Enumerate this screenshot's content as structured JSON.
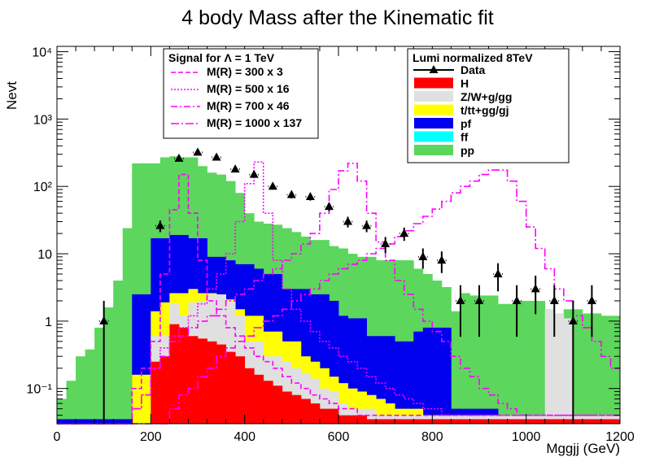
{
  "chart_data": {
    "type": "histogram",
    "title": "4 body Mass after the Kinematic fit",
    "xlabel": "Mggjj (GeV)",
    "ylabel": "Nevt",
    "xlim": [
      0,
      1200
    ],
    "ylim": [
      0.03,
      12000
    ],
    "log_y": true,
    "bin_width": 20,
    "x_ticks": [
      0,
      200,
      400,
      600,
      800,
      1000,
      1200
    ],
    "x_tick_labels": [
      "0",
      "200",
      "400",
      "600",
      "800",
      "1000",
      "1200"
    ],
    "y_ticks": [
      0.1,
      1,
      10,
      100,
      1000,
      10000
    ],
    "y_tick_labels": [
      "10⁻¹",
      "1",
      "10",
      "10²",
      "10³",
      "10⁴"
    ],
    "colors": {
      "pp": "#5cd65c",
      "ff": "#00ffff",
      "pf": "#0000ee",
      "ttgj": "#ffff00",
      "zw": "#e0e0e0",
      "h": "#ff0000",
      "signal": "#ff00ff",
      "data": "#000000"
    },
    "background_stack": [
      {
        "name": "pp",
        "bins_from": 0,
        "values": [
          0.07,
          0.13,
          0.3,
          0.38,
          0.8,
          1.6,
          4.0,
          24,
          220,
          220,
          220,
          270,
          280,
          270,
          270,
          200,
          160,
          150,
          120,
          80,
          40,
          30,
          28,
          27,
          24,
          21,
          18,
          16,
          16,
          13,
          12,
          10,
          9,
          9,
          8,
          8,
          8,
          8,
          6,
          5,
          4,
          3.2,
          1.4,
          2.6,
          2.4,
          2.4,
          2.4,
          1.8,
          1.8,
          2.0,
          2.0,
          2.0,
          1.5,
          1.3,
          1.5,
          1.5,
          1.3,
          1.3,
          1.2,
          1.2
        ]
      },
      {
        "name": "pf",
        "bins_from": 0,
        "values": [
          0.035,
          0.035,
          0.035,
          0.035,
          0.035,
          0.035,
          0.035,
          0.035,
          2.5,
          2.5,
          17,
          17,
          19,
          19,
          17,
          17,
          9,
          9,
          8,
          7,
          7,
          6,
          5,
          5,
          3,
          3,
          3,
          2.5,
          2.5,
          2,
          1.2,
          1.1,
          1.1,
          0.6,
          0.6,
          0.6,
          0.5,
          0.5,
          0.7,
          0.8,
          0.8,
          0.8,
          0.05,
          0.05,
          0.05,
          0.05,
          0.05,
          0.04,
          0.04,
          0.04,
          0.04,
          0.04,
          0.035,
          0.035,
          0.035,
          0.035,
          0.035,
          0.035,
          0.035,
          0.035
        ]
      },
      {
        "name": "t/tt+gg/gj",
        "bins_from": 0,
        "values": [
          0.03,
          0.03,
          0.03,
          0.03,
          0.03,
          0.03,
          0.03,
          0.03,
          0.16,
          0.16,
          1.4,
          1.9,
          2.6,
          2.6,
          3.0,
          2.6,
          2.6,
          2.4,
          2.1,
          1.5,
          1.2,
          1.2,
          0.7,
          0.7,
          0.5,
          0.5,
          0.3,
          0.25,
          0.2,
          0.15,
          0.12,
          0.1,
          0.09,
          0.08,
          0.07,
          0.06,
          0.05,
          0.05,
          0.05,
          0.04,
          0.04,
          0.04,
          0.04,
          0.04,
          0.04,
          0.04,
          0.04,
          0.04,
          0.04,
          0.04,
          0.04,
          0.04,
          0.04,
          0.04,
          0.04,
          0.04,
          0.04,
          0.04,
          0.04,
          0.04
        ]
      },
      {
        "name": "Z/W+g/gg",
        "bins_from": 0,
        "values": [
          0.03,
          0.03,
          0.03,
          0.03,
          0.03,
          0.03,
          0.03,
          0.03,
          0.03,
          0.03,
          0.6,
          0.6,
          1.8,
          1.2,
          1.9,
          2.0,
          2.5,
          2.5,
          2.0,
          1.2,
          0.5,
          0.5,
          0.3,
          0.3,
          0.25,
          0.2,
          0.17,
          0.14,
          0.1,
          0.09,
          0.06,
          0.05,
          0.05,
          0.05,
          0.04,
          0.04,
          0.04,
          0.04,
          0.04,
          0.04,
          0.04,
          0.04,
          0.04,
          0.04,
          0.04,
          0.04,
          0.04,
          0.04,
          0.04,
          0.04,
          0.04,
          0.04,
          1.5,
          1.3,
          1.1,
          0.04,
          0.04,
          0.04,
          0.04,
          0.04
        ]
      },
      {
        "name": "H",
        "bins_from": 0,
        "values": [
          0.03,
          0.03,
          0.03,
          0.03,
          0.03,
          0.03,
          0.03,
          0.03,
          0.03,
          0.03,
          0.25,
          0.3,
          0.9,
          0.8,
          0.6,
          0.55,
          0.5,
          0.45,
          0.35,
          0.3,
          0.2,
          0.16,
          0.13,
          0.11,
          0.09,
          0.08,
          0.07,
          0.06,
          0.05,
          0.05,
          0.04,
          0.04,
          0.04,
          0.035,
          0.035,
          0.035,
          0.035,
          0.035,
          0.035,
          0.035,
          0.035,
          0.035,
          0.035,
          0.035,
          0.035,
          0.035,
          0.035,
          0.035,
          0.035,
          0.035,
          0.035,
          0.035,
          0.035,
          0.035,
          0.035,
          0.035,
          0.035,
          0.035,
          0.035,
          0.035
        ]
      }
    ],
    "signals": [
      {
        "name": "M(R) = 300 x 3",
        "dash": "6,3",
        "values": [
          0.03,
          0.03,
          0.03,
          0.03,
          0.03,
          0.03,
          0.03,
          0.03,
          0.1,
          0.2,
          0.5,
          5.0,
          45,
          150,
          40,
          8,
          2,
          1.2,
          0.8,
          0.6,
          0.4,
          0.3,
          0.25,
          0.2,
          0.15,
          0.12,
          0.1,
          0.08,
          0.07,
          0.06,
          0.05,
          0.05,
          0.04,
          0.04,
          0.04,
          0.04,
          0.04,
          0.04,
          0.04,
          0.04,
          0.04,
          0.04,
          0.04,
          0.04,
          0.04,
          0.04,
          0.04,
          0.04,
          0.04,
          0.04,
          0.04,
          0.04,
          0.04,
          0.04,
          0.04,
          0.04,
          0.04,
          0.04,
          0.04,
          0.04
        ]
      },
      {
        "name": "M(R) = 500 x 16",
        "dash": "2,2",
        "values": [
          0.03,
          0.03,
          0.03,
          0.03,
          0.03,
          0.03,
          0.03,
          0.03,
          0.05,
          0.08,
          0.2,
          0.4,
          0.6,
          0.8,
          1.2,
          1.8,
          3,
          5,
          10,
          30,
          110,
          230,
          40,
          8,
          3,
          1.5,
          1,
          0.7,
          0.5,
          0.4,
          0.3,
          0.25,
          0.2,
          0.15,
          0.12,
          0.1,
          0.08,
          0.07,
          0.06,
          0.05,
          0.05,
          0.04,
          0.04,
          0.04,
          0.04,
          0.04,
          0.04,
          0.04,
          0.04,
          0.04,
          0.04,
          0.04,
          0.04,
          0.04,
          0.04,
          0.04,
          0.04,
          0.04,
          0.04,
          0.04
        ]
      },
      {
        "name": "M(R) = 700 x 46",
        "dash": "8,3,2,3",
        "values": [
          0.03,
          0.03,
          0.03,
          0.03,
          0.03,
          0.03,
          0.03,
          0.03,
          0.05,
          0.08,
          0.2,
          0.3,
          0.5,
          0.6,
          0.8,
          1.0,
          1.2,
          1.5,
          2.0,
          2.5,
          3,
          4,
          5,
          6,
          8,
          10,
          14,
          20,
          40,
          90,
          170,
          220,
          120,
          40,
          15,
          8,
          4,
          2.5,
          1.5,
          1,
          0.7,
          0.5,
          0.3,
          0.2,
          0.15,
          0.1,
          0.08,
          0.06,
          0.05,
          0.04,
          0.04,
          0.04,
          0.04,
          0.04,
          0.04,
          0.04,
          0.04,
          0.04,
          0.04,
          0.04
        ]
      },
      {
        "name": "M(R) = 1000 x 137",
        "dash": "10,3,2,3",
        "values": [
          0.03,
          0.03,
          0.03,
          0.03,
          0.03,
          0.03,
          0.03,
          0.03,
          0.03,
          0.03,
          0.03,
          0.03,
          0.05,
          0.08,
          0.1,
          0.15,
          0.2,
          0.3,
          0.4,
          0.5,
          0.6,
          0.8,
          1.0,
          1.2,
          1.5,
          2.0,
          2.5,
          3,
          4,
          5,
          6,
          7,
          8,
          10,
          12,
          14,
          18,
          22,
          28,
          36,
          46,
          60,
          80,
          100,
          120,
          150,
          175,
          175,
          120,
          60,
          25,
          12,
          6,
          3,
          2,
          1.2,
          0.8,
          0.5,
          0.3,
          0.2
        ]
      }
    ],
    "data_points": [
      {
        "x": 100,
        "y": 1
      },
      {
        "x": 220,
        "y": 26
      },
      {
        "x": 260,
        "y": 260
      },
      {
        "x": 300,
        "y": 320
      },
      {
        "x": 340,
        "y": 270
      },
      {
        "x": 380,
        "y": 180
      },
      {
        "x": 420,
        "y": 150
      },
      {
        "x": 460,
        "y": 100
      },
      {
        "x": 500,
        "y": 75
      },
      {
        "x": 540,
        "y": 70
      },
      {
        "x": 580,
        "y": 50
      },
      {
        "x": 620,
        "y": 30
      },
      {
        "x": 660,
        "y": 26
      },
      {
        "x": 700,
        "y": 14
      },
      {
        "x": 740,
        "y": 20
      },
      {
        "x": 780,
        "y": 9
      },
      {
        "x": 820,
        "y": 8
      },
      {
        "x": 860,
        "y": 2
      },
      {
        "x": 900,
        "y": 2
      },
      {
        "x": 940,
        "y": 5
      },
      {
        "x": 980,
        "y": 2
      },
      {
        "x": 1020,
        "y": 3
      },
      {
        "x": 1060,
        "y": 2
      },
      {
        "x": 1100,
        "y": 1
      },
      {
        "x": 1140,
        "y": 2
      }
    ],
    "legend_signal": {
      "title": "Signal for Λ = 1 TeV",
      "entries": [
        "M(R) = 300 x 3",
        "M(R) = 500 x 16",
        "M(R) = 700 x 46",
        "M(R) = 1000 x 137"
      ]
    },
    "legend_background": {
      "title": "Lumi normalized 8TeV",
      "entries": [
        "Data",
        "H",
        "Z/W+g/gg",
        "t/tt+gg/gj",
        "pf",
        "ff",
        "pp"
      ]
    }
  }
}
